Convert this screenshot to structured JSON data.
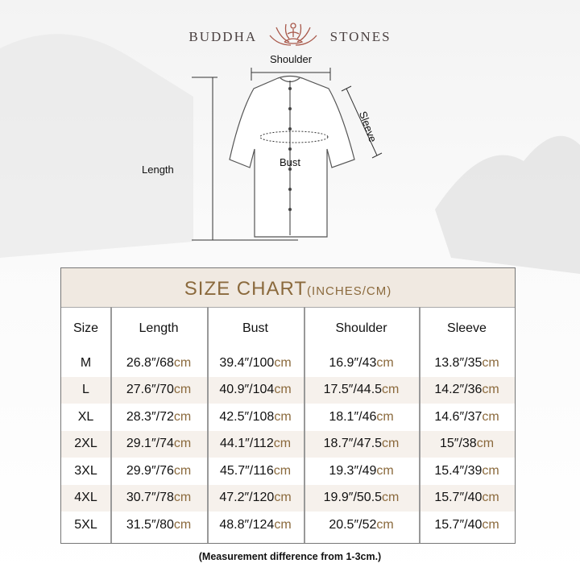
{
  "brand": {
    "left": "BUDDHA",
    "right": "STONES",
    "logo": "lotus-meditation-icon"
  },
  "diagram": {
    "shoulder": "Shoulder",
    "sleeve": "Sleeve",
    "length": "Length",
    "bust": "Bust"
  },
  "table": {
    "title": "SIZE CHART",
    "title_unit": "(INCHES/CM)",
    "headers": [
      "Size",
      "Length",
      "Bust",
      "Shoulder",
      "Sleeve"
    ],
    "rows": [
      {
        "size": "M",
        "cells": [
          [
            "26.8″/68",
            "cm"
          ],
          [
            "39.4″/100",
            "cm"
          ],
          [
            "16.9″/43",
            "cm"
          ],
          [
            "13.8″/35",
            "cm"
          ]
        ]
      },
      {
        "size": "L",
        "cells": [
          [
            "27.6″/70",
            "cm"
          ],
          [
            "40.9″/104",
            "cm"
          ],
          [
            "17.5″/44.5",
            "cm"
          ],
          [
            "14.2″/36",
            "cm"
          ]
        ]
      },
      {
        "size": "XL",
        "cells": [
          [
            "28.3″/72",
            "cm"
          ],
          [
            "42.5″/108",
            "cm"
          ],
          [
            "18.1″/46",
            "cm"
          ],
          [
            "14.6″/37",
            "cm"
          ]
        ]
      },
      {
        "size": "2XL",
        "cells": [
          [
            "29.1″/74",
            "cm"
          ],
          [
            "44.1″/112",
            "cm"
          ],
          [
            "18.7″/47.5",
            "cm"
          ],
          [
            "15″/38",
            "cm"
          ]
        ]
      },
      {
        "size": "3XL",
        "cells": [
          [
            "29.9″/76",
            "cm"
          ],
          [
            "45.7″/116",
            "cm"
          ],
          [
            "19.3″/49",
            "cm"
          ],
          [
            "15.4″/39",
            "cm"
          ]
        ]
      },
      {
        "size": "4XL",
        "cells": [
          [
            "30.7″/78",
            "cm"
          ],
          [
            "47.2″/120",
            "cm"
          ],
          [
            "19.9″/50.5",
            "cm"
          ],
          [
            "15.7″/40",
            "cm"
          ]
        ]
      },
      {
        "size": "5XL",
        "cells": [
          [
            "31.5″/80",
            "cm"
          ],
          [
            "48.8″/124",
            "cm"
          ],
          [
            "20.5″/52",
            "cm"
          ],
          [
            "15.7″/40",
            "cm"
          ]
        ]
      }
    ]
  },
  "note": "(Measurement difference from 1-3cm.)",
  "colors": {
    "accent": "#8b6a3d",
    "title_bg": "#f0e9e1",
    "alt_row": "#f6f1ec"
  }
}
